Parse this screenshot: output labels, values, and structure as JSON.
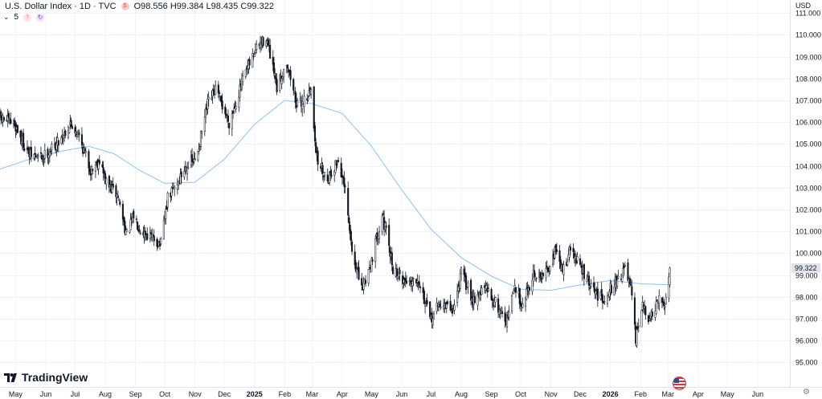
{
  "legend": {
    "title": "U.S. Dollar Index · 1D · TVC",
    "open_label": "O",
    "open": "98.556",
    "high_label": "H",
    "high": "99.384",
    "low_label": "L",
    "low": "98.435",
    "close_label": "C",
    "close": "99.322",
    "symbol_icon": "currency-badge-icon"
  },
  "indicator_row": {
    "chevron_icon": "chevron-down-icon",
    "count": "5"
  },
  "currency": "USD",
  "branding": {
    "name": "TradingView",
    "logo_icon": "tradingview-logo-icon"
  },
  "colors": {
    "up": "#ffffff",
    "down": "#131722",
    "wick": "#131722",
    "ma": "#90bff9",
    "last_price_bg": "#e0e3eb",
    "grid": "#f0f3fa"
  },
  "chart_data": {
    "type": "candlestick",
    "title": "U.S. Dollar Index · 1D · TVC",
    "ylim": [
      94.5,
      111.3
    ],
    "y_ticks": [
      95.0,
      96.0,
      97.0,
      98.0,
      99.0,
      100.0,
      101.0,
      102.0,
      103.0,
      104.0,
      105.0,
      106.0,
      107.0,
      108.0,
      109.0,
      110.0,
      111.0
    ],
    "y_tick_labels": [
      "95.000",
      "96.000",
      "97.000",
      "98.000",
      "99.000",
      "100.000",
      "101.000",
      "102.000",
      "103.000",
      "104.000",
      "105.000",
      "106.000",
      "107.000",
      "108.000",
      "109.000",
      "110.000",
      "111.000"
    ],
    "x_tick_labels": [
      "May",
      "Jun",
      "Jul",
      "Aug",
      "Sep",
      "Oct",
      "Nov",
      "Dec",
      "2025",
      "Feb",
      "Mar",
      "Apr",
      "May",
      "Jun",
      "Jul",
      "Aug",
      "Sep",
      "Oct",
      "Nov",
      "Dec",
      "2026",
      "Feb",
      "Mar",
      "Apr",
      "May",
      "Jun"
    ],
    "x_tick_months": [
      "2024-05",
      "2024-06",
      "2024-07",
      "2024-08",
      "2024-09",
      "2024-10",
      "2024-11",
      "2024-12",
      "2025-01",
      "2025-02",
      "2025-03",
      "2025-04",
      "2025-05",
      "2025-06",
      "2025-07",
      "2025-08",
      "2025-09",
      "2025-10",
      "2025-11",
      "2025-12",
      "2026-01",
      "2026-02",
      "2026-03",
      "2026-04",
      "2026-05",
      "2026-06"
    ],
    "x_range": [
      "2024-04-15",
      "2026-06-25"
    ],
    "last_price": 99.322,
    "last_price_label": "99.322",
    "close_keypoints": [
      [
        "2024-04-15",
        106.2
      ],
      [
        "2024-04-30",
        105.9
      ],
      [
        "2024-05-15",
        104.5
      ],
      [
        "2024-05-28",
        104.4
      ],
      [
        "2024-06-10",
        104.9
      ],
      [
        "2024-06-26",
        105.9
      ],
      [
        "2024-07-03",
        105.6
      ],
      [
        "2024-07-17",
        103.8
      ],
      [
        "2024-07-26",
        104.3
      ],
      [
        "2024-08-02",
        103.2
      ],
      [
        "2024-08-14",
        102.6
      ],
      [
        "2024-08-23",
        100.8
      ],
      [
        "2024-08-30",
        101.7
      ],
      [
        "2024-09-06",
        101.1
      ],
      [
        "2024-09-18",
        100.7
      ],
      [
        "2024-09-27",
        100.4
      ],
      [
        "2024-10-04",
        102.5
      ],
      [
        "2024-10-15",
        103.3
      ],
      [
        "2024-10-24",
        104.1
      ],
      [
        "2024-11-01",
        104.2
      ],
      [
        "2024-11-06",
        105.1
      ],
      [
        "2024-11-14",
        106.8
      ],
      [
        "2024-11-22",
        107.5
      ],
      [
        "2024-12-06",
        106.0
      ],
      [
        "2024-12-20",
        107.9
      ],
      [
        "2025-01-02",
        109.3
      ],
      [
        "2025-01-13",
        109.9
      ],
      [
        "2025-01-24",
        107.5
      ],
      [
        "2025-02-03",
        108.8
      ],
      [
        "2025-02-14",
        106.7
      ],
      [
        "2025-02-28",
        107.4
      ],
      [
        "2025-03-06",
        104.3
      ],
      [
        "2025-03-17",
        103.4
      ],
      [
        "2025-03-28",
        104.3
      ],
      [
        "2025-04-04",
        102.8
      ],
      [
        "2025-04-11",
        100.1
      ],
      [
        "2025-04-21",
        98.3
      ],
      [
        "2025-04-30",
        99.5
      ],
      [
        "2025-05-12",
        101.8
      ],
      [
        "2025-05-23",
        99.3
      ],
      [
        "2025-06-05",
        98.7
      ],
      [
        "2025-06-18",
        98.9
      ],
      [
        "2025-06-30",
        96.9
      ],
      [
        "2025-07-10",
        97.7
      ],
      [
        "2025-07-24",
        97.4
      ],
      [
        "2025-08-01",
        99.1
      ],
      [
        "2025-08-13",
        97.9
      ],
      [
        "2025-08-26",
        98.4
      ],
      [
        "2025-09-05",
        97.7
      ],
      [
        "2025-09-17",
        96.9
      ],
      [
        "2025-09-25",
        98.5
      ],
      [
        "2025-10-02",
        97.7
      ],
      [
        "2025-10-14",
        99.0
      ],
      [
        "2025-10-24",
        98.9
      ],
      [
        "2025-11-05",
        100.1
      ],
      [
        "2025-11-13",
        99.2
      ],
      [
        "2025-11-21",
        100.2
      ],
      [
        "2025-12-01",
        99.4
      ],
      [
        "2025-12-12",
        98.4
      ],
      [
        "2025-12-24",
        97.9
      ],
      [
        "2026-01-05",
        98.6
      ],
      [
        "2026-01-16",
        99.3
      ],
      [
        "2026-01-22",
        98.3
      ],
      [
        "2026-01-27",
        96.0
      ],
      [
        "2026-02-02",
        97.6
      ],
      [
        "2026-02-10",
        96.9
      ],
      [
        "2026-02-20",
        97.8
      ],
      [
        "2026-02-26",
        97.7
      ],
      [
        "2026-03-03",
        99.322
      ]
    ],
    "moving_average": [
      [
        "2024-04-15",
        103.85
      ],
      [
        "2024-05-15",
        104.3
      ],
      [
        "2024-06-15",
        104.65
      ],
      [
        "2024-07-15",
        104.9
      ],
      [
        "2024-08-10",
        104.55
      ],
      [
        "2024-09-05",
        103.8
      ],
      [
        "2024-10-01",
        103.2
      ],
      [
        "2024-11-01",
        103.25
      ],
      [
        "2024-12-01",
        104.3
      ],
      [
        "2025-01-01",
        105.9
      ],
      [
        "2025-02-01",
        107.0
      ],
      [
        "2025-03-01",
        106.85
      ],
      [
        "2025-04-01",
        106.4
      ],
      [
        "2025-05-01",
        104.9
      ],
      [
        "2025-06-01",
        102.9
      ],
      [
        "2025-07-01",
        101.1
      ],
      [
        "2025-08-01",
        99.8
      ],
      [
        "2025-09-01",
        98.95
      ],
      [
        "2025-10-01",
        98.35
      ],
      [
        "2025-11-01",
        98.3
      ],
      [
        "2025-12-01",
        98.55
      ],
      [
        "2026-01-01",
        98.75
      ],
      [
        "2026-02-01",
        98.6
      ],
      [
        "2026-03-03",
        98.55
      ]
    ]
  }
}
